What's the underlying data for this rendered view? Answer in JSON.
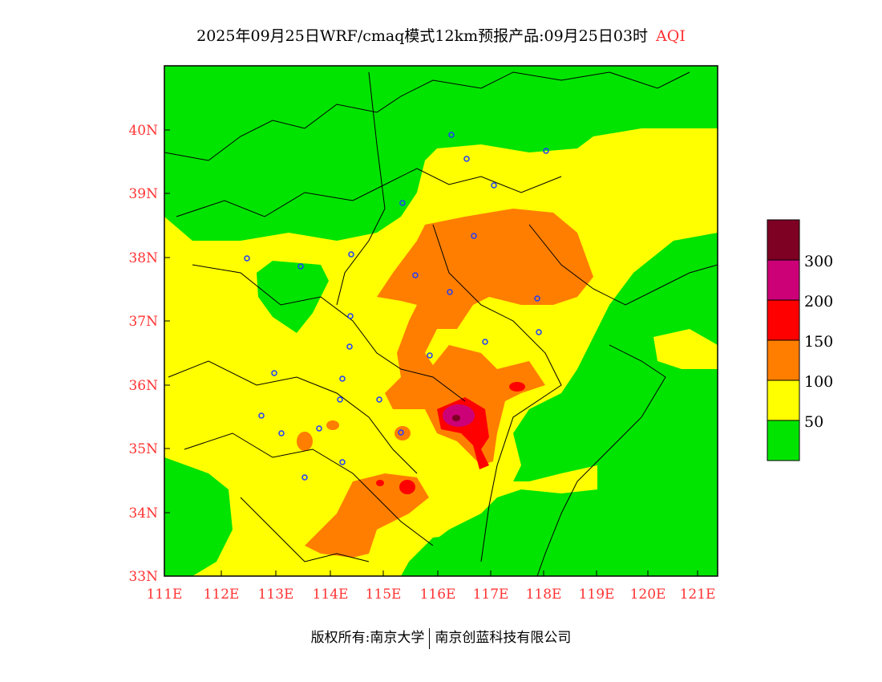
{
  "title": {
    "main": "2025年09月25日WRF/cmaq模式12km预报产品:09月25日03时",
    "variable": "AQI"
  },
  "axes": {
    "x_ticks": [
      "111E",
      "112E",
      "113E",
      "114E",
      "115E",
      "116E",
      "117E",
      "118E",
      "119E",
      "120E",
      "121E"
    ],
    "y_ticks": [
      "33N",
      "34N",
      "35N",
      "36N",
      "37N",
      "38N",
      "39N",
      "40N"
    ]
  },
  "legend": {
    "labels": [
      "50",
      "100",
      "150",
      "200",
      "300"
    ],
    "colors": [
      "#00e400",
      "#ffff00",
      "#ff7e00",
      "#ff0000",
      "#cc0077",
      "#7e0023"
    ]
  },
  "credit": {
    "left": "版权所有:南京大学",
    "right": "南京创蓝科技有限公司"
  }
}
